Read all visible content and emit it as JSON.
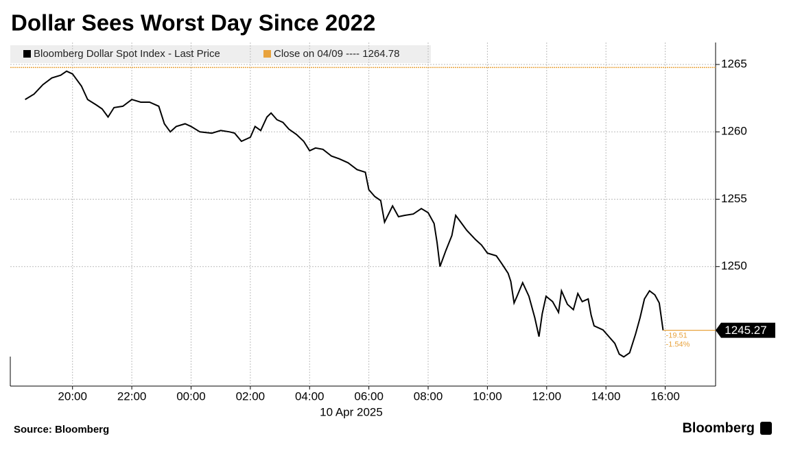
{
  "chart_data": {
    "type": "line",
    "title": "Dollar Sees Worst Day Since 2022",
    "x_sublabel": "10 Apr 2025",
    "source": "Source: Bloomberg",
    "brand": "Bloomberg",
    "series": [
      {
        "name": "Bloomberg Dollar Spot Index - Last Price",
        "color": "#000000",
        "x": [
          -5.6,
          -5.3,
          -5.0,
          -4.7,
          -4.4,
          -4.2,
          -4.0,
          -3.7,
          -3.49,
          -3.2,
          -3.0,
          -2.8,
          -2.6,
          -2.3,
          -2.0,
          -1.7,
          -1.4,
          -1.09,
          -0.9,
          -0.7,
          -0.5,
          -0.2,
          0,
          0.3,
          0.7,
          1.0,
          1.3,
          1.47,
          1.7,
          2.0,
          2.16,
          2.35,
          2.56,
          2.7,
          2.9,
          3.1,
          3.3,
          3.56,
          3.8,
          4.0,
          4.2,
          4.45,
          4.74,
          5.0,
          5.3,
          5.6,
          5.88,
          6.0,
          6.2,
          6.4,
          6.53,
          6.8,
          7.0,
          7.2,
          7.5,
          7.77,
          8.0,
          8.2,
          8.3,
          8.4,
          8.6,
          8.8,
          8.93,
          9.1,
          9.3,
          9.6,
          9.8,
          10.0,
          10.3,
          10.49,
          10.7,
          10.79,
          10.9,
          11.0,
          11.19,
          11.4,
          11.6,
          11.74,
          11.85,
          11.98,
          12.2,
          12.4,
          12.5,
          12.7,
          12.9,
          13.05,
          13.2,
          13.4,
          13.5,
          13.6,
          13.9,
          14.1,
          14.3,
          14.45,
          14.6,
          14.8,
          15.0,
          15.15,
          15.3,
          15.47,
          15.65,
          15.8,
          15.93
        ],
        "values": [
          1262.4,
          1262.8,
          1263.5,
          1264.0,
          1264.2,
          1264.5,
          1264.3,
          1263.4,
          1262.4,
          1262.0,
          1261.7,
          1261.1,
          1261.8,
          1261.9,
          1262.4,
          1262.2,
          1262.2,
          1261.9,
          1260.6,
          1260.0,
          1260.4,
          1260.6,
          1260.4,
          1260.0,
          1259.9,
          1260.1,
          1260.0,
          1259.9,
          1259.3,
          1259.6,
          1260.4,
          1260.1,
          1261.1,
          1261.4,
          1260.9,
          1260.7,
          1260.2,
          1259.8,
          1259.3,
          1258.6,
          1258.8,
          1258.7,
          1258.2,
          1258.0,
          1257.7,
          1257.2,
          1257.0,
          1255.7,
          1255.2,
          1254.9,
          1253.3,
          1254.5,
          1253.7,
          1253.8,
          1253.9,
          1254.3,
          1254.0,
          1253.2,
          1251.8,
          1250.0,
          1251.2,
          1252.3,
          1253.8,
          1253.3,
          1252.7,
          1252.0,
          1251.6,
          1251.0,
          1250.8,
          1250.2,
          1249.5,
          1248.9,
          1247.3,
          1247.8,
          1248.8,
          1247.8,
          1246.2,
          1244.8,
          1246.5,
          1247.8,
          1247.4,
          1246.6,
          1248.2,
          1247.2,
          1246.8,
          1248.0,
          1247.4,
          1247.6,
          1246.4,
          1245.6,
          1245.3,
          1244.8,
          1244.3,
          1243.5,
          1243.3,
          1243.6,
          1245.0,
          1246.2,
          1247.6,
          1248.2,
          1247.9,
          1247.3,
          1245.27
        ]
      }
    ],
    "reference_line": {
      "name": "Close on 04/09 ---- 1264.78",
      "value": 1264.78,
      "color": "#e8a33d"
    },
    "annotations": [
      "-19.51",
      "-1.54%"
    ],
    "xlim": [
      -6.1,
      17.7
    ],
    "xticks": [
      {
        "value": -4,
        "label": "20:00"
      },
      {
        "value": -2,
        "label": "22:00"
      },
      {
        "value": 0,
        "label": "00:00"
      },
      {
        "value": 2,
        "label": "02:00"
      },
      {
        "value": 4,
        "label": "04:00"
      },
      {
        "value": 6,
        "label": "06:00"
      },
      {
        "value": 8,
        "label": "08:00"
      },
      {
        "value": 10,
        "label": "10:00"
      },
      {
        "value": 12,
        "label": "12:00"
      },
      {
        "value": 14,
        "label": "14:00"
      },
      {
        "value": 16,
        "label": "16:00"
      }
    ],
    "ylim": [
      1241.13,
      1266.63
    ],
    "yticks": [
      1250,
      1255,
      1260,
      1265
    ],
    "grid": true
  }
}
